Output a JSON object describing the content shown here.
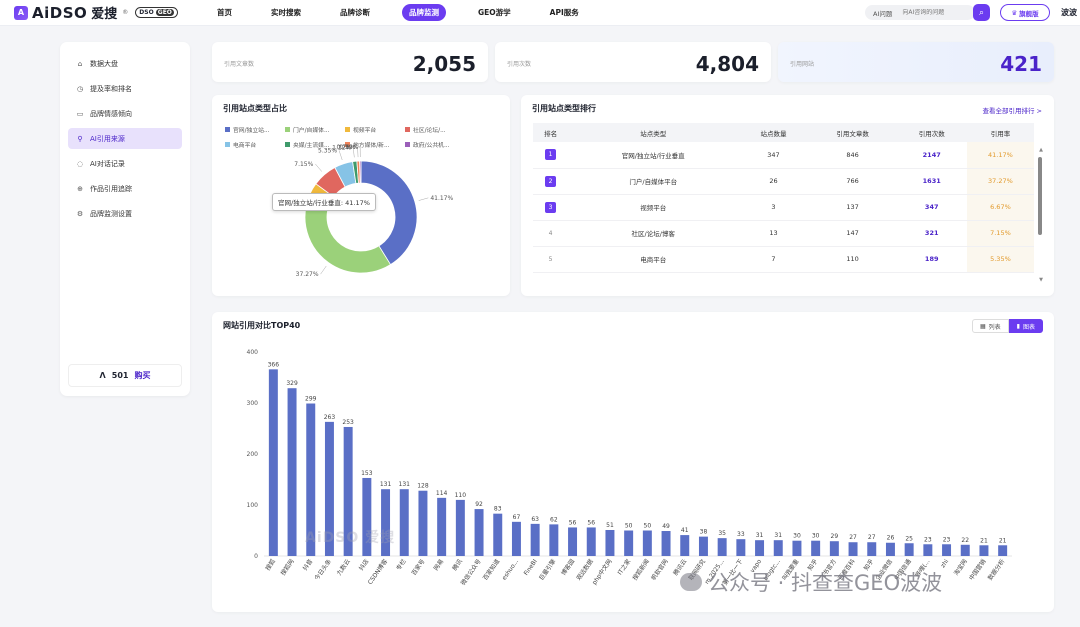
{
  "brand": {
    "mark": "A",
    "name": "AiDSO",
    "cn": "爱搜",
    "sub": "®",
    "tag_left": "DSO",
    "tag_right": "GEO"
  },
  "nav": [
    {
      "label": "首页",
      "active": false
    },
    {
      "label": "实时搜索",
      "active": false
    },
    {
      "label": "品牌诊断",
      "active": false
    },
    {
      "label": "品牌监测",
      "active": true
    },
    {
      "label": "GEO游学",
      "active": false
    },
    {
      "label": "API服务",
      "active": false
    }
  ],
  "search": {
    "label": "AI问题",
    "placeholder": "向AI咨询的问题"
  },
  "flag_button": "旗舰版",
  "user": "波波",
  "sidebar": {
    "items": [
      {
        "label": "数据大盘",
        "icon": "home-icon",
        "glyph": "⌂",
        "active": false
      },
      {
        "label": "提及率和排名",
        "icon": "history-icon",
        "glyph": "◷",
        "active": false
      },
      {
        "label": "品牌情感倾向",
        "icon": "book-icon",
        "glyph": "▭",
        "active": false
      },
      {
        "label": "AI引用来源",
        "icon": "link-icon",
        "glyph": "⚲",
        "active": true
      },
      {
        "label": "AI对话记录",
        "icon": "chat-icon",
        "glyph": "◌",
        "active": false
      },
      {
        "label": "作品引用追踪",
        "icon": "target-icon",
        "glyph": "⊕",
        "active": false
      },
      {
        "label": "品牌监测设置",
        "icon": "gear-icon",
        "glyph": "⚙",
        "active": false
      }
    ],
    "credits": {
      "value": "501",
      "buy": "购买"
    }
  },
  "stats": [
    {
      "label": "引用文章数",
      "value": "2,055"
    },
    {
      "label": "引用次数",
      "value": "4,804"
    },
    {
      "label": "引用网站",
      "value": "421"
    }
  ],
  "pie_card": {
    "title": "引用站点类型占比",
    "tooltip": "官网/独立站/行业垂直: 41.17%"
  },
  "rank_card": {
    "title": "引用站点类型排行",
    "link": "查看全部引用排行 >",
    "headers": [
      "排名",
      "站点类型",
      "站点数量",
      "引用文章数",
      "引用次数",
      "引用率"
    ],
    "rows": [
      {
        "rank": "1",
        "type": "官网/独立站/行业垂直",
        "sites": "347",
        "articles": "846",
        "cites": "2147",
        "rate": "41.17%"
      },
      {
        "rank": "2",
        "type": "门户/自媒体平台",
        "sites": "26",
        "articles": "766",
        "cites": "1631",
        "rate": "37.27%"
      },
      {
        "rank": "3",
        "type": "视频平台",
        "sites": "3",
        "articles": "137",
        "cites": "347",
        "rate": "6.67%"
      },
      {
        "rank": "4",
        "type": "社区/论坛/博客",
        "sites": "13",
        "articles": "147",
        "cites": "321",
        "rate": "7.15%"
      },
      {
        "rank": "5",
        "type": "电商平台",
        "sites": "7",
        "articles": "110",
        "cites": "189",
        "rate": "5.35%"
      }
    ]
  },
  "bar_card": {
    "title": "网站引用对比TOP40",
    "toggle_list": "列表",
    "toggle_chart": "图表"
  },
  "watermark": "AiDSO 爱搜",
  "wechat": "公众号 · 抖查查GEO波波",
  "colors": {
    "accent": "#6b3cf0",
    "bar": "#5a6fc6"
  },
  "chart_data": [
    {
      "type": "pie",
      "title": "引用站点类型占比",
      "legend": [
        {
          "name": "官网/独立站...",
          "color": "#5a6fc6"
        },
        {
          "name": "门户/自媒体...",
          "color": "#9bd17a"
        },
        {
          "name": "视频平台",
          "color": "#f0b93c"
        },
        {
          "name": "社区/论坛/...",
          "color": "#e0675f"
        },
        {
          "name": "电商平台",
          "color": "#86c3e6"
        },
        {
          "name": "央媒/主流媒...",
          "color": "#3f9a6b"
        },
        {
          "name": "地方媒体/新...",
          "color": "#f0845a"
        },
        {
          "name": "政府/公共机...",
          "color": "#9b5fb9"
        }
      ],
      "slices": [
        {
          "name": "官网/独立站/行业垂直",
          "value": 41.17,
          "label": "41.17%",
          "color": "#5a6fc6"
        },
        {
          "name": "门户/自媒体平台",
          "value": 37.27,
          "label": "37.27%",
          "color": "#9bd17a"
        },
        {
          "name": "视频平台",
          "value": 6.67,
          "label": "",
          "color": "#f0b93c"
        },
        {
          "name": "社区/论坛/博客",
          "value": 7.15,
          "label": "7.15%",
          "color": "#e0675f"
        },
        {
          "name": "电商平台",
          "value": 5.35,
          "label": "5.35%",
          "color": "#86c3e6"
        },
        {
          "name": "央媒/主流媒体",
          "value": 1.22,
          "label": "1.22%",
          "color": "#3f9a6b"
        },
        {
          "name": "地方媒体/新闻",
          "value": 0.78,
          "label": "0.78%",
          "color": "#f0845a"
        },
        {
          "name": "政府/公共机构",
          "value": 0.39,
          "label": "0.39%",
          "color": "#9b5fb9"
        }
      ]
    },
    {
      "type": "bar",
      "title": "网站引用对比TOP40",
      "ylim": [
        0,
        400
      ],
      "yticks": [
        0,
        100,
        200,
        300,
        400
      ],
      "grid": false,
      "categories": [
        "搜狐",
        "搜狐网",
        "抖音",
        "今日头条",
        "九数云",
        "抖店",
        "CSDN博客",
        "专栏",
        "百家号",
        "网易",
        "腾讯",
        "微信公众号",
        "百家知道",
        "eshuo...",
        "FineBI",
        "巨量引擎",
        "博客园",
        "观远数据",
        "php中文网",
        "IT之家",
        "搜狐新闻",
        "帆软官网",
        "腾讯云",
        "联网研究",
        "m.2025...",
        "第一比一下",
        "vapo",
        "blogtc...",
        "叫我要重",
        "知乎",
        "飞书官方",
        "百度百科",
        "知乎",
        "企业微信",
        "中国信通",
        "哔哩(...",
        "zhi",
        "淘宝网",
        "中国营销",
        "数据分析"
      ],
      "values": [
        366,
        329,
        299,
        263,
        253,
        153,
        131,
        131,
        128,
        114,
        110,
        92,
        83,
        67,
        63,
        62,
        56,
        56,
        51,
        50,
        50,
        49,
        41,
        38,
        35,
        33,
        31,
        31,
        30,
        30,
        29,
        27,
        27,
        26,
        25,
        23,
        23,
        22,
        21,
        21
      ]
    }
  ]
}
